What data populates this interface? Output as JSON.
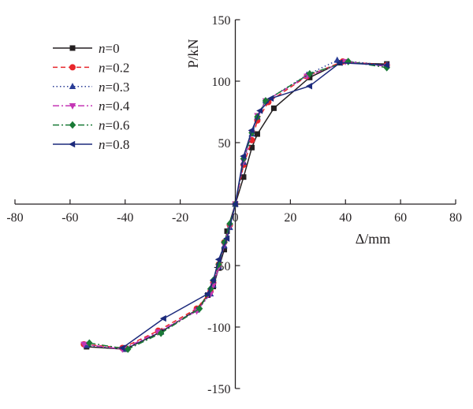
{
  "chart_data": {
    "type": "line",
    "xlabel": "Δ/mm",
    "ylabel": "P/kN",
    "xlim": [
      -80,
      80
    ],
    "ylim": [
      -150,
      150
    ],
    "xticks": [
      -80,
      -60,
      -40,
      -20,
      0,
      20,
      40,
      60,
      80
    ],
    "yticks": [
      -150,
      -100,
      -50,
      0,
      50,
      100,
      150
    ],
    "xtick_labels": [
      "-80",
      "-60",
      "-40",
      "-20",
      "0",
      "20",
      "40",
      "60",
      "80"
    ],
    "ytick_labels": [
      "-150",
      "-100",
      "-50",
      "",
      "50",
      "100",
      "150"
    ],
    "grid": false,
    "legend_position": "top-left",
    "series": [
      {
        "name": "n=0",
        "legend_var": "n",
        "legend_suffix": "=0",
        "color": "#231f20",
        "dash": "solid",
        "marker": "square",
        "points": [
          [
            -54,
            -116
          ],
          [
            -40,
            -118
          ],
          [
            -27,
            -104
          ],
          [
            -14,
            -86
          ],
          [
            -10,
            -74
          ],
          [
            -8,
            -67
          ],
          [
            -6,
            -52
          ],
          [
            -4,
            -37
          ],
          [
            -3,
            -22
          ],
          [
            0,
            0
          ],
          [
            3,
            22
          ],
          [
            6,
            46
          ],
          [
            8,
            57
          ],
          [
            14,
            78
          ],
          [
            27,
            103
          ],
          [
            38,
            115
          ],
          [
            55,
            114
          ]
        ]
      },
      {
        "name": "n=0.2",
        "legend_var": "n",
        "legend_suffix": "=0.2",
        "color": "#e8262b",
        "dash": "dashed",
        "marker": "circle",
        "points": [
          [
            -55,
            -114
          ],
          [
            -41,
            -117
          ],
          [
            -28,
            -103
          ],
          [
            -14,
            -85
          ],
          [
            -9,
            -71
          ],
          [
            -8,
            -64
          ],
          [
            -6,
            -49
          ],
          [
            -4,
            -31
          ],
          [
            -2,
            -17
          ],
          [
            0,
            0
          ],
          [
            3,
            32
          ],
          [
            6,
            52
          ],
          [
            8,
            68
          ],
          [
            12,
            83
          ],
          [
            26,
            104
          ],
          [
            39,
            116
          ],
          [
            55,
            113
          ]
        ]
      },
      {
        "name": "n=0.3",
        "legend_var": "n",
        "legend_suffix": "=0.3",
        "color": "#2a3d96",
        "dash": "dotted",
        "marker": "triangle-up",
        "points": [
          [
            -54,
            -115
          ],
          [
            -40,
            -118
          ],
          [
            -27,
            -104
          ],
          [
            -14,
            -86
          ],
          [
            -9,
            -73
          ],
          [
            -8,
            -66
          ],
          [
            -6,
            -51
          ],
          [
            -4,
            -34
          ],
          [
            -2,
            -19
          ],
          [
            0,
            0
          ],
          [
            3,
            34
          ],
          [
            6,
            57
          ],
          [
            8,
            71
          ],
          [
            11,
            84
          ],
          [
            26,
            105
          ],
          [
            37,
            117
          ],
          [
            55,
            113
          ]
        ]
      },
      {
        "name": "n=0.4",
        "legend_var": "n",
        "legend_suffix": "=0.4",
        "color": "#c436b5",
        "dash": "dashdot",
        "marker": "triangle-down",
        "points": [
          [
            -55,
            -114
          ],
          [
            -41,
            -118
          ],
          [
            -28,
            -104
          ],
          [
            -14,
            -87
          ],
          [
            -9,
            -73
          ],
          [
            -8,
            -66
          ],
          [
            -6,
            -51
          ],
          [
            -4,
            -33
          ],
          [
            -2,
            -18
          ],
          [
            0,
            0
          ],
          [
            3,
            35
          ],
          [
            6,
            58
          ],
          [
            8,
            72
          ],
          [
            11,
            84
          ],
          [
            26,
            104
          ],
          [
            40,
            116
          ],
          [
            55,
            112
          ]
        ]
      },
      {
        "name": "n=0.6",
        "legend_var": "n",
        "legend_suffix": "=0.6",
        "color": "#1a7a36",
        "dash": "dashdot",
        "marker": "diamond",
        "points": [
          [
            -53,
            -113
          ],
          [
            -39,
            -118
          ],
          [
            -27,
            -105
          ],
          [
            -13,
            -85
          ],
          [
            -9,
            -69
          ],
          [
            -8,
            -62
          ],
          [
            -6,
            -49
          ],
          [
            -4,
            -31
          ],
          [
            -2,
            -16
          ],
          [
            0,
            0
          ],
          [
            3,
            37
          ],
          [
            6,
            58
          ],
          [
            8,
            71
          ],
          [
            11,
            84
          ],
          [
            27,
            106
          ],
          [
            41,
            116
          ],
          [
            55,
            111
          ]
        ]
      },
      {
        "name": "n=0.8",
        "legend_var": "n",
        "legend_suffix": "=0.8",
        "color": "#1c2a7c",
        "dash": "solid",
        "marker": "triangle-left",
        "points": [
          [
            -41,
            -117
          ],
          [
            -26,
            -93
          ],
          [
            -10,
            -73
          ],
          [
            -8,
            -62
          ],
          [
            -6,
            -45
          ],
          [
            -3,
            -28
          ],
          [
            0,
            0
          ],
          [
            3,
            39
          ],
          [
            6,
            60
          ],
          [
            9,
            76
          ],
          [
            13,
            86
          ],
          [
            27,
            96
          ],
          [
            38,
            115
          ],
          [
            55,
            113
          ]
        ]
      }
    ]
  }
}
